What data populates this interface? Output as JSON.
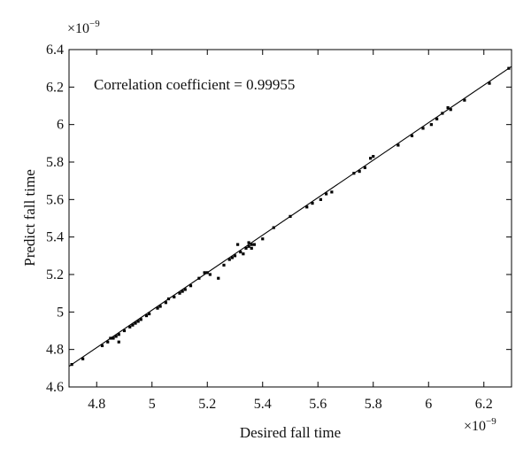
{
  "colors": {
    "background": "#ffffff",
    "axis": "#000000",
    "line": "#000000",
    "marker": "#000000"
  },
  "chart_data": {
    "type": "scatter",
    "title": "",
    "xlabel": "Desired fall time",
    "ylabel": "Predict fall time",
    "x_multiplier_base": "×10",
    "x_multiplier_exp": "−9",
    "y_multiplier_base": "×10",
    "y_multiplier_exp": "−9",
    "annotation": "Correlation coefficient = 0.99955",
    "xlim": [
      4.7,
      6.3
    ],
    "ylim": [
      4.6,
      6.4
    ],
    "x_ticks": [
      4.8,
      5.0,
      5.2,
      5.4,
      5.6,
      5.8,
      6.0,
      6.2
    ],
    "x_tick_labels": [
      "4.8",
      "5",
      "5.2",
      "5.4",
      "5.6",
      "5.8",
      "6",
      "6.2"
    ],
    "y_ticks": [
      4.6,
      4.8,
      5.0,
      5.2,
      5.4,
      5.6,
      5.8,
      6.0,
      6.2,
      6.4
    ],
    "y_tick_labels": [
      "4.6",
      "4.8",
      "5",
      "5.2",
      "5.4",
      "5.6",
      "5.8",
      "6",
      "6.2",
      "6.4"
    ],
    "grid": false,
    "legend": "none",
    "fit_line": {
      "x": [
        4.7,
        6.3
      ],
      "y": [
        4.71,
        6.31
      ]
    },
    "points": {
      "x": [
        4.71,
        4.75,
        4.82,
        4.84,
        4.85,
        4.86,
        4.87,
        4.88,
        4.88,
        4.9,
        4.92,
        4.93,
        4.94,
        4.95,
        4.96,
        4.98,
        4.99,
        5.02,
        5.03,
        5.05,
        5.06,
        5.08,
        5.1,
        5.11,
        5.12,
        5.14,
        5.17,
        5.19,
        5.2,
        5.21,
        5.24,
        5.26,
        5.28,
        5.29,
        5.3,
        5.31,
        5.32,
        5.33,
        5.34,
        5.35,
        5.35,
        5.36,
        5.36,
        5.37,
        5.4,
        5.44,
        5.5,
        5.56,
        5.58,
        5.61,
        5.63,
        5.65,
        5.73,
        5.75,
        5.77,
        5.79,
        5.8,
        5.89,
        5.94,
        5.98,
        6.01,
        6.03,
        6.05,
        6.07,
        6.08,
        6.13,
        6.22,
        6.29
      ],
      "y": [
        4.72,
        4.75,
        4.82,
        4.84,
        4.86,
        4.86,
        4.87,
        4.88,
        4.84,
        4.9,
        4.92,
        4.93,
        4.94,
        4.95,
        4.96,
        4.98,
        4.99,
        5.02,
        5.03,
        5.05,
        5.07,
        5.08,
        5.1,
        5.11,
        5.12,
        5.14,
        5.18,
        5.21,
        5.21,
        5.2,
        5.18,
        5.25,
        5.28,
        5.29,
        5.3,
        5.36,
        5.32,
        5.31,
        5.34,
        5.35,
        5.37,
        5.36,
        5.34,
        5.36,
        5.39,
        5.45,
        5.51,
        5.56,
        5.58,
        5.6,
        5.63,
        5.64,
        5.74,
        5.75,
        5.77,
        5.82,
        5.83,
        5.89,
        5.94,
        5.98,
        6.0,
        6.03,
        6.06,
        6.09,
        6.08,
        6.13,
        6.22,
        6.3
      ]
    }
  }
}
